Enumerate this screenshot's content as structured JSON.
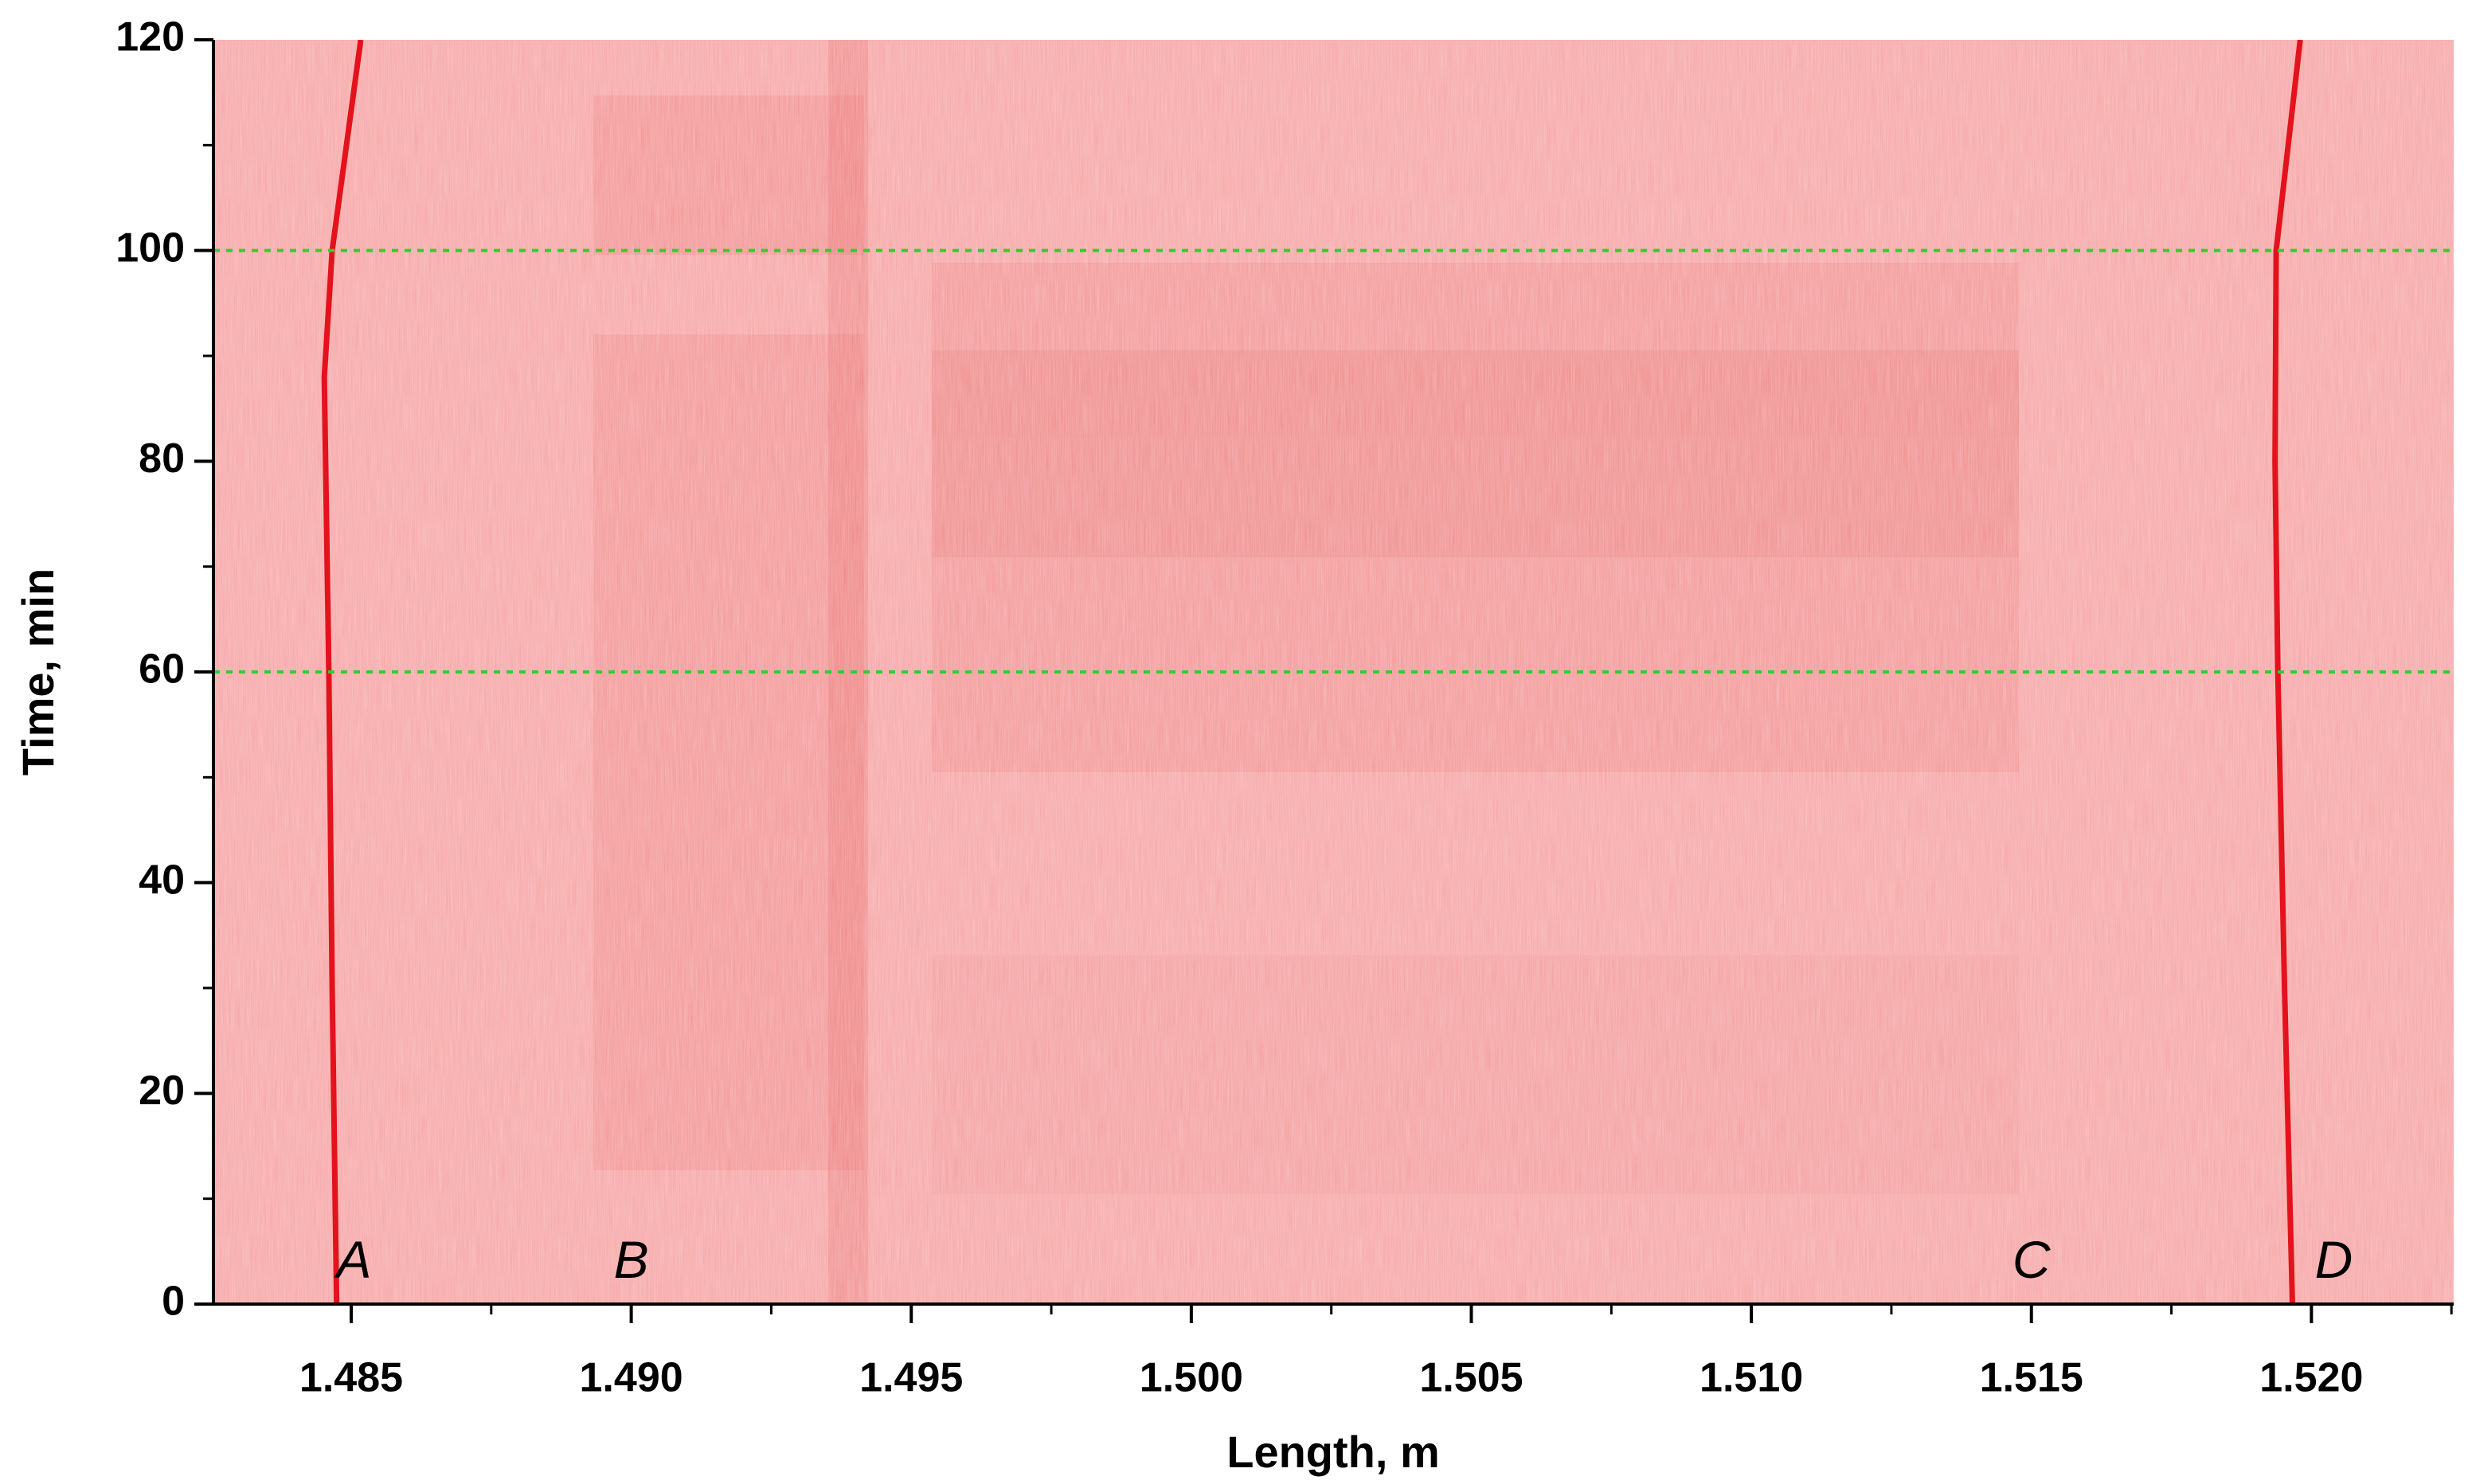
{
  "chart_data": {
    "type": "line",
    "x_label": "Length, m",
    "y_label": "Time, min",
    "xlim": [
      1.48254,
      1.52254
    ],
    "ylim": [
      0,
      120
    ],
    "xticks": [
      1.485,
      {
        "value": 1.49,
        "label": "1.490"
      },
      1.495,
      {
        "value": 1.5,
        "label": "1.500"
      },
      1.505,
      {
        "value": 1.51,
        "label": "1.510"
      },
      1.515,
      {
        "value": 1.52,
        "label": "1.520"
      }
    ],
    "yticks": [
      0,
      20,
      40,
      60,
      80,
      100,
      120
    ],
    "background_color": "#f6a4a4",
    "series": [
      {
        "color": "#e3121c",
        "x": [
          1.48474,
          1.48466,
          1.4846,
          1.48452,
          1.48466,
          1.48517
        ],
        "values": [
          0,
          30,
          60,
          88,
          100,
          120
        ]
      },
      {
        "color": "#e3121c",
        "x": [
          1.51966,
          1.51952,
          1.5194,
          1.51935,
          1.51937,
          1.5198
        ],
        "values": [
          0,
          30,
          60,
          80,
          100,
          120
        ]
      }
    ],
    "reference_lines": {
      "color": "#33cc33",
      "values": [
        60,
        100
      ]
    },
    "annotations": [
      {
        "text": "A",
        "x": 1.48505,
        "y": 3.8
      },
      {
        "text": "B",
        "x": 1.49,
        "y": 3.8
      },
      {
        "text": "C",
        "x": 1.515,
        "y": 3.8
      },
      {
        "text": "D",
        "x": 1.5204,
        "y": 3.8
      }
    ]
  }
}
